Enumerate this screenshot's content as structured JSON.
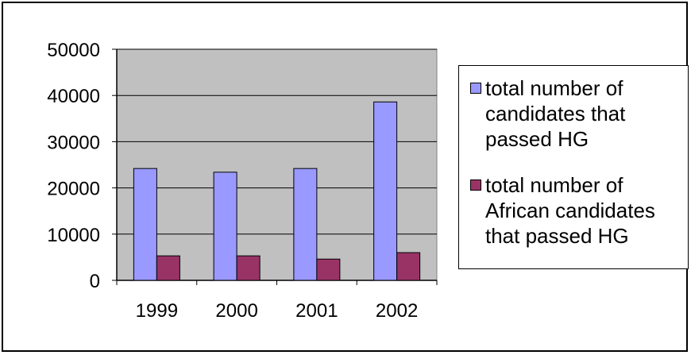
{
  "chart_data": {
    "type": "bar",
    "categories": [
      "1999",
      "2000",
      "2001",
      "2002"
    ],
    "series": [
      {
        "name": "total number of candidates that passed HG",
        "values": [
          24200,
          23400,
          24200,
          38600
        ],
        "color": "#9999ff"
      },
      {
        "name": "total number of African candidates that passed HG",
        "values": [
          5300,
          5300,
          4600,
          6000
        ],
        "color": "#993366"
      }
    ],
    "yticks": [
      "0",
      "10000",
      "20000",
      "30000",
      "40000",
      "50000"
    ],
    "ylim": [
      0,
      50000
    ],
    "title": "",
    "xlabel": "",
    "ylabel": "",
    "grid": true,
    "plot_background": "#c0c0c0",
    "legend_position": "right"
  }
}
